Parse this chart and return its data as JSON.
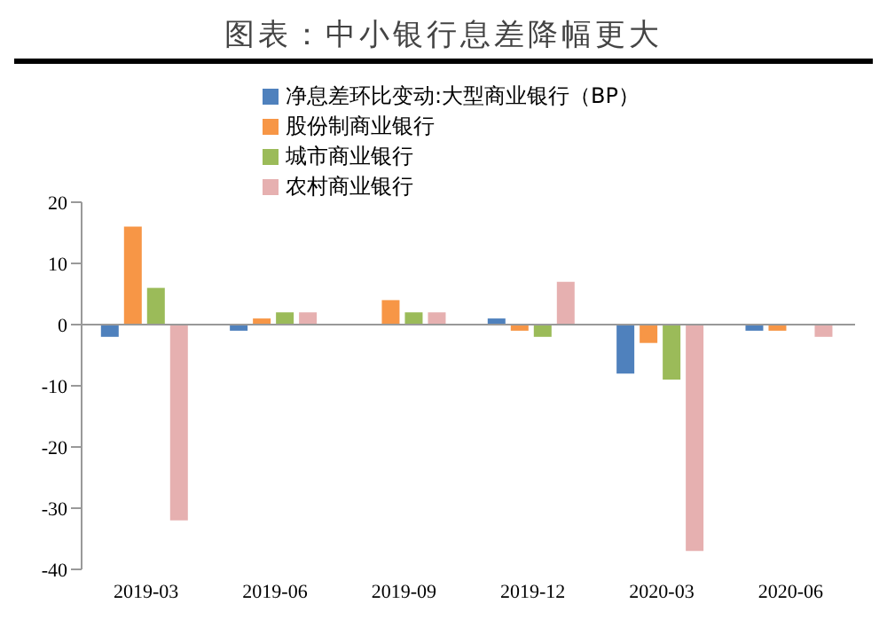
{
  "chart_data": {
    "type": "bar",
    "title": "图表：中小银行息差降幅更大",
    "categories": [
      "2019-03",
      "2019-06",
      "2019-09",
      "2019-12",
      "2020-03",
      "2020-06"
    ],
    "series": [
      {
        "name": "净息差环比变动:大型商业银行（BP）",
        "color": "#4f81bd",
        "values": [
          -2,
          -1,
          0,
          1,
          -8,
          -1
        ]
      },
      {
        "name": "股份制商业银行",
        "color": "#f79646",
        "values": [
          16,
          1,
          4,
          -1,
          -3,
          -1
        ]
      },
      {
        "name": "城市商业银行",
        "color": "#9bbb59",
        "values": [
          6,
          2,
          2,
          -2,
          -9,
          0
        ]
      },
      {
        "name": "农村商业银行",
        "color": "#e6b0b0",
        "values": [
          -32,
          2,
          2,
          7,
          -37,
          -2
        ]
      }
    ],
    "ylim": [
      -40,
      20
    ],
    "yticks": [
      -40,
      -30,
      -20,
      -10,
      0,
      10,
      20
    ],
    "ref_lines": [
      {
        "axis": "y",
        "value": 0,
        "color": "#999999"
      }
    ],
    "legend": "top"
  }
}
